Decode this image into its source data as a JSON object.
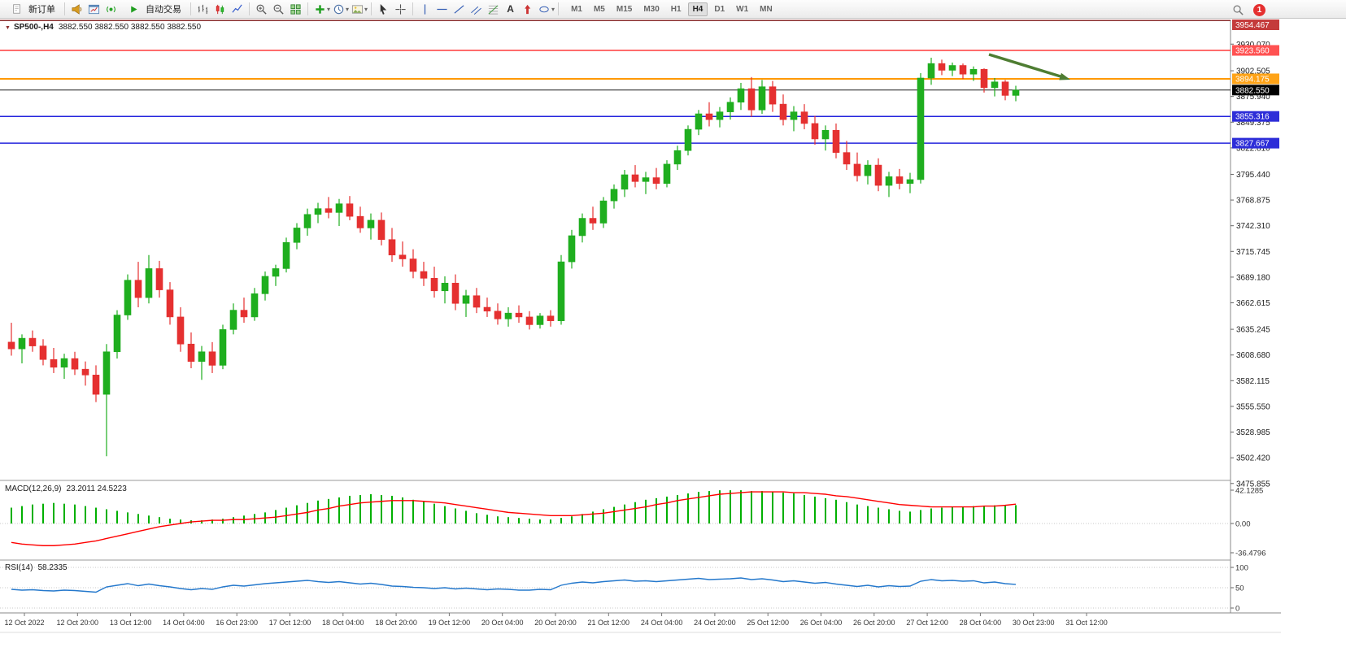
{
  "toolbar": {
    "new_order": "新订单",
    "auto_trading": "自动交易",
    "timeframes": [
      "M1",
      "M5",
      "M15",
      "M30",
      "H1",
      "H4",
      "D1",
      "W1",
      "MN"
    ],
    "active_timeframe": "H4",
    "notification_count": "1",
    "text_tool_label": "A"
  },
  "chart": {
    "title": "SP500-,H4",
    "ohlc_text": "3882.550 3882.550 3882.550 3882.550"
  },
  "chart_data": {
    "type": "candlestick",
    "symbol": "SP500-",
    "timeframe": "H4",
    "title": "SP500-,H4 3882.550 3882.550 3882.550 3882.550",
    "ylim": [
      3480.0,
      3941.0
    ],
    "price_axis": {
      "labels": [
        "3930.070",
        "3902.505",
        "3875.940",
        "3849.375",
        "3822.810",
        "3795.440",
        "3768.875",
        "3742.310",
        "3715.745",
        "3689.180",
        "3662.615",
        "3635.245",
        "3608.680",
        "3582.115",
        "3555.550",
        "3528.985",
        "3502.420",
        "3475.855"
      ]
    },
    "price_lines": [
      {
        "price": 3954.467,
        "label": "3954.467",
        "color": "#8b3030",
        "label_bg": "#c43b3b",
        "width": 1.5
      },
      {
        "price": 3923.56,
        "label": "3923.560",
        "color": "#ff3b3b",
        "label_bg": "#ff5252",
        "width": 1.5
      },
      {
        "price": 3894.175,
        "label": "3894.175",
        "color": "#ff9900",
        "label_bg": "#ffa317",
        "width": 2
      },
      {
        "price": 3882.55,
        "label": "3882.550",
        "color": "#1a1a1a",
        "label_bg": "#000000",
        "width": 1,
        "current": true
      },
      {
        "price": 3855.316,
        "label": "3855.316",
        "color": "#2424dd",
        "label_bg": "#2d2dd8",
        "width": 1.5
      },
      {
        "price": 3827.667,
        "label": "3827.667",
        "color": "#2424dd",
        "label_bg": "#2d2dd8",
        "width": 1.5
      }
    ],
    "time_axis": [
      "12 Oct 2022",
      "12 Oct 20:00",
      "13 Oct 12:00",
      "14 Oct 04:00",
      "16 Oct 23:00",
      "17 Oct 12:00",
      "18 Oct 04:00",
      "18 Oct 20:00",
      "19 Oct 12:00",
      "20 Oct 04:00",
      "20 Oct 20:00",
      "21 Oct 12:00",
      "24 Oct 04:00",
      "24 Oct 20:00",
      "25 Oct 12:00",
      "26 Oct 04:00",
      "26 Oct 20:00",
      "27 Oct 12:00",
      "28 Oct 04:00",
      "30 Oct 23:00",
      "31 Oct 12:00"
    ],
    "ohlc": [
      [
        3622,
        3642,
        3608,
        3615
      ],
      [
        3615,
        3630,
        3600,
        3626
      ],
      [
        3626,
        3634,
        3612,
        3618
      ],
      [
        3618,
        3625,
        3598,
        3604
      ],
      [
        3604,
        3616,
        3590,
        3596
      ],
      [
        3596,
        3610,
        3584,
        3605
      ],
      [
        3605,
        3612,
        3588,
        3594
      ],
      [
        3594,
        3602,
        3577,
        3588
      ],
      [
        3588,
        3598,
        3560,
        3568
      ],
      [
        3568,
        3620,
        3504,
        3612
      ],
      [
        3612,
        3655,
        3605,
        3650
      ],
      [
        3650,
        3692,
        3645,
        3686
      ],
      [
        3686,
        3705,
        3658,
        3668
      ],
      [
        3668,
        3712,
        3662,
        3698
      ],
      [
        3698,
        3706,
        3668,
        3676
      ],
      [
        3676,
        3684,
        3640,
        3648
      ],
      [
        3648,
        3658,
        3612,
        3620
      ],
      [
        3620,
        3632,
        3595,
        3602
      ],
      [
        3602,
        3618,
        3583,
        3612
      ],
      [
        3612,
        3622,
        3590,
        3598
      ],
      [
        3598,
        3640,
        3594,
        3635
      ],
      [
        3635,
        3662,
        3630,
        3655
      ],
      [
        3655,
        3668,
        3642,
        3648
      ],
      [
        3648,
        3678,
        3644,
        3672
      ],
      [
        3672,
        3695,
        3665,
        3690
      ],
      [
        3690,
        3702,
        3680,
        3698
      ],
      [
        3698,
        3730,
        3694,
        3725
      ],
      [
        3725,
        3745,
        3718,
        3740
      ],
      [
        3740,
        3760,
        3732,
        3754
      ],
      [
        3754,
        3766,
        3745,
        3760
      ],
      [
        3760,
        3772,
        3750,
        3756
      ],
      [
        3756,
        3770,
        3742,
        3765
      ],
      [
        3765,
        3773,
        3748,
        3752
      ],
      [
        3752,
        3762,
        3735,
        3740
      ],
      [
        3740,
        3755,
        3728,
        3748
      ],
      [
        3748,
        3756,
        3722,
        3728
      ],
      [
        3728,
        3740,
        3705,
        3712
      ],
      [
        3712,
        3726,
        3700,
        3708
      ],
      [
        3708,
        3718,
        3688,
        3695
      ],
      [
        3695,
        3705,
        3680,
        3688
      ],
      [
        3688,
        3700,
        3668,
        3675
      ],
      [
        3675,
        3690,
        3662,
        3683
      ],
      [
        3683,
        3692,
        3655,
        3662
      ],
      [
        3662,
        3676,
        3648,
        3670
      ],
      [
        3670,
        3678,
        3652,
        3658
      ],
      [
        3658,
        3668,
        3648,
        3654
      ],
      [
        3654,
        3662,
        3640,
        3646
      ],
      [
        3646,
        3658,
        3638,
        3652
      ],
      [
        3652,
        3660,
        3642,
        3648
      ],
      [
        3648,
        3654,
        3635,
        3640
      ],
      [
        3640,
        3652,
        3636,
        3649
      ],
      [
        3649,
        3655,
        3638,
        3644
      ],
      [
        3644,
        3712,
        3640,
        3705
      ],
      [
        3705,
        3738,
        3698,
        3732
      ],
      [
        3732,
        3755,
        3725,
        3750
      ],
      [
        3750,
        3762,
        3738,
        3745
      ],
      [
        3745,
        3772,
        3740,
        3768
      ],
      [
        3768,
        3785,
        3760,
        3780
      ],
      [
        3780,
        3800,
        3772,
        3795
      ],
      [
        3795,
        3805,
        3782,
        3788
      ],
      [
        3788,
        3798,
        3775,
        3792
      ],
      [
        3792,
        3802,
        3780,
        3786
      ],
      [
        3786,
        3810,
        3782,
        3806
      ],
      [
        3806,
        3825,
        3800,
        3820
      ],
      [
        3820,
        3846,
        3815,
        3842
      ],
      [
        3842,
        3862,
        3836,
        3858
      ],
      [
        3858,
        3870,
        3845,
        3852
      ],
      [
        3852,
        3865,
        3844,
        3860
      ],
      [
        3860,
        3875,
        3852,
        3870
      ],
      [
        3870,
        3890,
        3862,
        3884
      ],
      [
        3884,
        3896,
        3855,
        3862
      ],
      [
        3862,
        3893,
        3858,
        3886
      ],
      [
        3886,
        3892,
        3860,
        3868
      ],
      [
        3868,
        3878,
        3846,
        3852
      ],
      [
        3852,
        3866,
        3840,
        3860
      ],
      [
        3860,
        3868,
        3842,
        3848
      ],
      [
        3848,
        3856,
        3826,
        3832
      ],
      [
        3832,
        3846,
        3820,
        3841
      ],
      [
        3841,
        3848,
        3812,
        3818
      ],
      [
        3818,
        3830,
        3800,
        3806
      ],
      [
        3806,
        3818,
        3788,
        3794
      ],
      [
        3794,
        3810,
        3785,
        3805
      ],
      [
        3805,
        3812,
        3778,
        3784
      ],
      [
        3784,
        3798,
        3772,
        3793
      ],
      [
        3793,
        3801,
        3780,
        3786
      ],
      [
        3786,
        3797,
        3776,
        3790
      ],
      [
        3790,
        3900,
        3786,
        3895
      ],
      [
        3895,
        3916,
        3888,
        3910
      ],
      [
        3910,
        3914,
        3898,
        3903
      ],
      [
        3903,
        3911,
        3897,
        3908
      ],
      [
        3908,
        3910,
        3894,
        3899
      ],
      [
        3899,
        3907,
        3892,
        3904
      ],
      [
        3904,
        3905,
        3880,
        3885
      ],
      [
        3885,
        3895,
        3876,
        3891
      ],
      [
        3891,
        3893,
        3872,
        3877
      ],
      [
        3877,
        3887,
        3871,
        3882.55
      ]
    ],
    "indicators": {
      "macd": {
        "label": "MACD(12,26,9)",
        "values_text": "23.2011 24.5223",
        "scale": [
          "42.1285",
          "0.00",
          "-36.4796"
        ],
        "histogram": [
          20,
          22,
          24,
          25,
          26,
          25,
          24,
          22,
          20,
          18,
          16,
          14,
          12,
          10,
          8,
          6,
          5,
          4,
          4,
          5,
          6,
          8,
          10,
          12,
          14,
          17,
          20,
          23,
          26,
          29,
          31,
          33,
          35,
          36,
          37,
          36,
          35,
          33,
          30,
          28,
          25,
          22,
          19,
          16,
          13,
          11,
          9,
          8,
          7,
          6,
          5,
          5,
          7,
          9,
          12,
          15,
          18,
          21,
          24,
          27,
          30,
          32,
          34,
          36,
          38,
          40,
          41,
          42,
          42,
          42,
          41,
          41,
          40,
          39,
          38,
          36,
          34,
          32,
          30,
          27,
          24,
          22,
          20,
          18,
          16,
          15,
          17,
          19,
          20,
          21,
          21,
          22,
          22,
          23,
          23,
          23.2
        ],
        "signal": [
          -24,
          -26,
          -27,
          -28,
          -28,
          -27,
          -26,
          -24,
          -22,
          -19,
          -16,
          -13,
          -10,
          -7,
          -4,
          -2,
          0,
          2,
          3,
          4,
          4,
          5,
          5,
          6,
          7,
          8,
          10,
          12,
          14,
          17,
          19,
          22,
          24,
          26,
          27,
          28,
          29,
          29,
          29,
          28,
          27,
          26,
          24,
          22,
          20,
          18,
          16,
          14,
          13,
          12,
          11,
          10,
          10,
          10,
          11,
          12,
          13,
          15,
          17,
          19,
          21,
          24,
          26,
          29,
          31,
          33,
          35,
          37,
          38,
          39,
          40,
          40,
          40,
          40,
          39,
          39,
          38,
          37,
          35,
          34,
          32,
          30,
          28,
          26,
          24,
          23,
          22,
          21,
          21,
          21,
          21,
          21,
          22,
          22,
          23,
          24.5
        ]
      },
      "rsi": {
        "label": "RSI(14)",
        "value_text": "58.2335",
        "scale": [
          "100",
          "50",
          "0"
        ],
        "values": [
          46,
          44,
          45,
          43,
          42,
          44,
          43,
          41,
          39,
          52,
          56,
          60,
          55,
          59,
          55,
          52,
          48,
          45,
          48,
          46,
          52,
          56,
          54,
          57,
          60,
          62,
          64,
          66,
          68,
          65,
          63,
          65,
          62,
          59,
          61,
          58,
          54,
          53,
          51,
          50,
          48,
          50,
          47,
          49,
          47,
          45,
          47,
          46,
          44,
          44,
          46,
          45,
          56,
          61,
          64,
          62,
          65,
          67,
          69,
          66,
          67,
          65,
          67,
          69,
          71,
          73,
          70,
          71,
          72,
          74,
          70,
          72,
          69,
          65,
          67,
          64,
          61,
          63,
          59,
          56,
          53,
          56,
          52,
          55,
          53,
          54,
          66,
          70,
          67,
          68,
          66,
          67,
          62,
          64,
          60,
          58.2
        ]
      }
    },
    "annotation_arrow": {
      "color": "#4e7d32"
    }
  },
  "colors": {
    "bull": "#1fae1f",
    "bear": "#e53030",
    "macd_hist": "#00b000",
    "macd_signal": "#ff0000",
    "rsi_line": "#2478cc",
    "axis_text": "#222222"
  }
}
